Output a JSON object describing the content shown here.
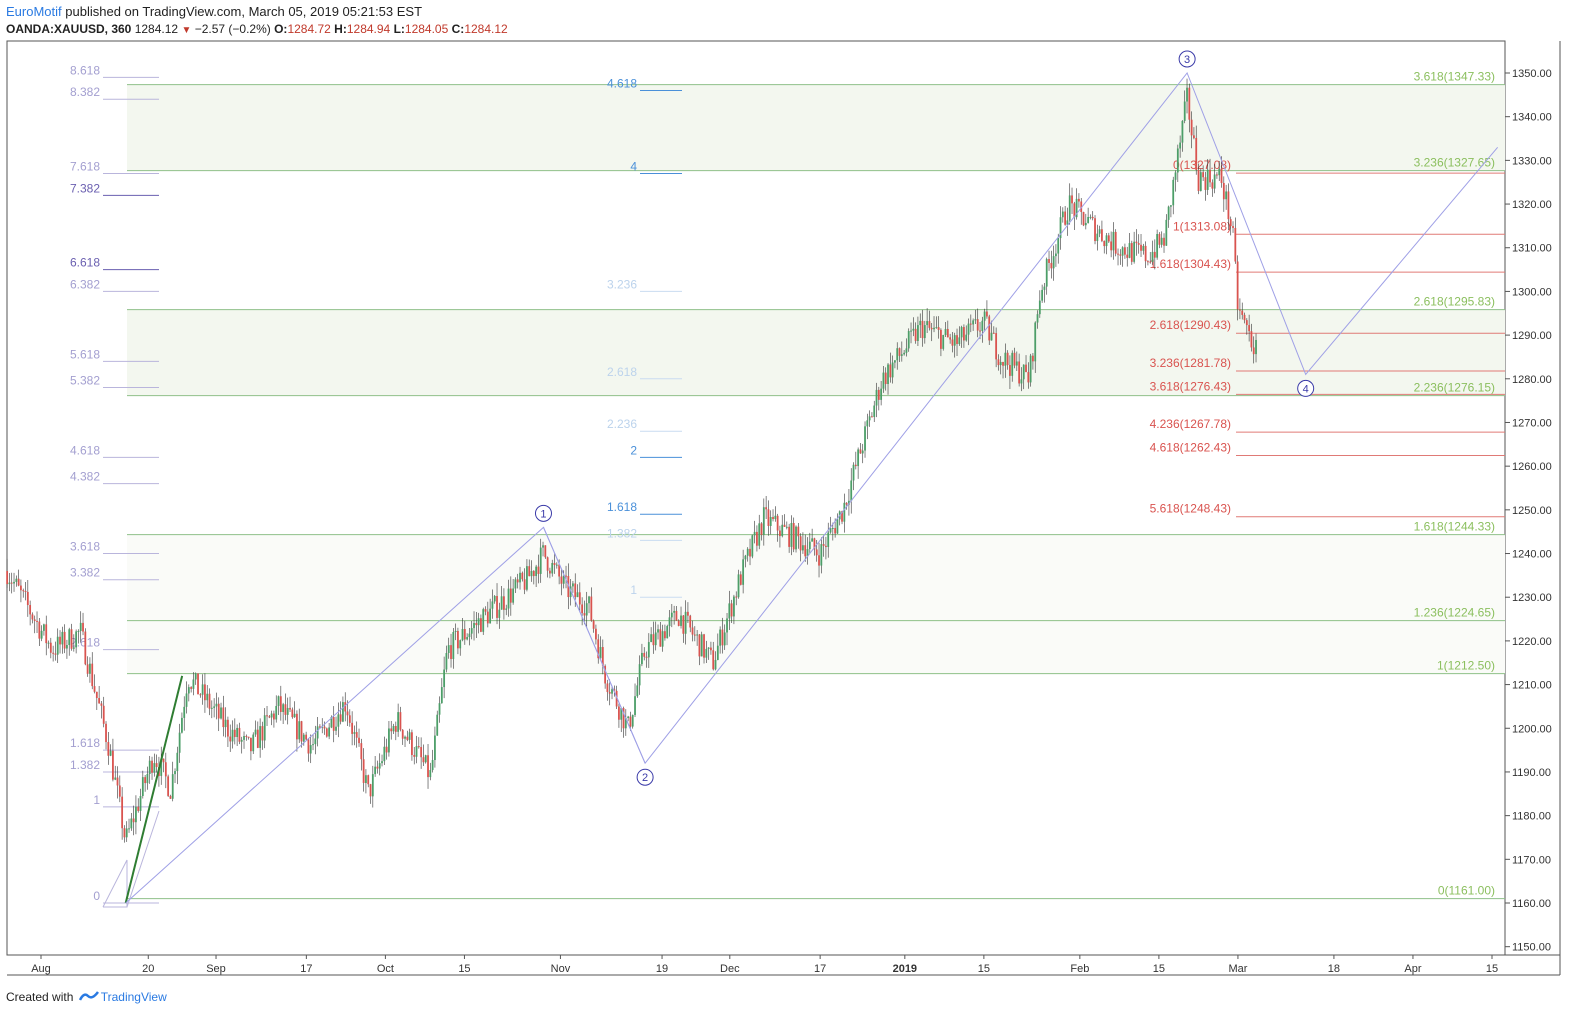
{
  "header": {
    "author": "EuroMotif",
    "published": "published on TradingView.com, March 05, 2019 05:21:53 EST",
    "symbol": "OANDA:XAUUSD, 360",
    "last": "1284.12",
    "change_icon": "down-triangle-icon",
    "change": "−2.57 (−0.2%)",
    "o_label": "O:",
    "o_value": "1284.72",
    "h_label": "H:",
    "h_value": "1284.94",
    "l_label": "L:",
    "l_value": "1284.05",
    "c_label": "C:",
    "c_value": "1284.12"
  },
  "footer": {
    "created_with": "Created with",
    "brand": "TradingView",
    "brand_icon": "tradingview-logo-icon"
  },
  "colors": {
    "up": "#4c9e68",
    "down": "#d9534f",
    "fib_green": "#8bc34a",
    "fib_red": "#d9534f",
    "wave": "#9fa0e6",
    "violet": "#9b97c8",
    "blue": "#4a90d9",
    "zone": "#f3f7ef"
  },
  "chart_data": {
    "type": "candlestick",
    "title": "",
    "xlabel": "",
    "ylabel": "",
    "ylim": [
      1150,
      1355
    ],
    "y_ticks": [
      "1350.00",
      "1340.00",
      "1330.00",
      "1320.00",
      "1310.00",
      "1300.00",
      "1290.00",
      "1280.00",
      "1270.00",
      "1260.00",
      "1250.00",
      "1240.00",
      "1230.00",
      "1220.00",
      "1210.00",
      "1200.00",
      "1190.00",
      "1180.00",
      "1170.00",
      "1160.00",
      "1150.00"
    ],
    "x_ticks": [
      "Aug",
      "20",
      "Sep",
      "17",
      "Oct",
      "15",
      "Nov",
      "19",
      "Dec",
      "17",
      "2019",
      "15",
      "Feb",
      "15",
      "Mar",
      "18",
      "Apr",
      "15"
    ],
    "grid": false,
    "price_path": [
      [
        "2018-07-26",
        1236
      ],
      [
        "2018-08-03",
        1218
      ],
      [
        "2018-08-08",
        1222
      ],
      [
        "2018-08-13",
        1196
      ],
      [
        "2018-08-16",
        1174
      ],
      [
        "2018-08-21",
        1194
      ],
      [
        "2018-08-24",
        1186
      ],
      [
        "2018-08-27",
        1212
      ],
      [
        "2018-09-03",
        1200
      ],
      [
        "2018-09-07",
        1195
      ],
      [
        "2018-09-12",
        1205
      ],
      [
        "2018-09-18",
        1196
      ],
      [
        "2018-09-24",
        1206
      ],
      [
        "2018-09-28",
        1185
      ],
      [
        "2018-10-03",
        1202
      ],
      [
        "2018-10-09",
        1189
      ],
      [
        "2018-10-12",
        1218
      ],
      [
        "2018-10-19",
        1226
      ],
      [
        "2018-10-26",
        1234
      ],
      [
        "2018-10-29",
        1240
      ],
      [
        "2018-11-02",
        1232
      ],
      [
        "2018-11-06",
        1228
      ],
      [
        "2018-11-09",
        1212
      ],
      [
        "2018-11-13",
        1200
      ],
      [
        "2018-11-16",
        1218
      ],
      [
        "2018-11-22",
        1226
      ],
      [
        "2018-11-28",
        1215
      ],
      [
        "2018-12-03",
        1235
      ],
      [
        "2018-12-07",
        1248
      ],
      [
        "2018-12-12",
        1244
      ],
      [
        "2018-12-17",
        1240
      ],
      [
        "2018-12-21",
        1250
      ],
      [
        "2018-12-28",
        1280
      ],
      [
        "2019-01-04",
        1292
      ],
      [
        "2019-01-10",
        1288
      ],
      [
        "2019-01-15",
        1293
      ],
      [
        "2019-01-18",
        1285
      ],
      [
        "2019-01-23",
        1280
      ],
      [
        "2019-01-25",
        1300
      ],
      [
        "2019-01-30",
        1320
      ],
      [
        "2019-02-04",
        1314
      ],
      [
        "2019-02-08",
        1310
      ],
      [
        "2019-02-13",
        1308
      ],
      [
        "2019-02-16",
        1312
      ],
      [
        "2019-02-20",
        1344
      ],
      [
        "2019-02-22",
        1326
      ],
      [
        "2019-02-26",
        1326
      ],
      [
        "2019-02-28",
        1314
      ],
      [
        "2019-03-01",
        1296
      ],
      [
        "2019-03-04",
        1287
      ],
      [
        "2019-03-05",
        1284
      ]
    ],
    "waves": [
      {
        "label": "1",
        "x": "2018-10-29",
        "y": 1246
      },
      {
        "label": "2",
        "x": "2018-11-16",
        "y": 1192
      },
      {
        "label": "3",
        "x": "2019-02-20",
        "y": 1350
      },
      {
        "label": "4",
        "x": "2019-03-13",
        "y": 1281
      }
    ],
    "wave_path": [
      [
        "2018-08-16",
        1160
      ],
      [
        "2018-10-29",
        1246
      ],
      [
        "2018-11-16",
        1192
      ],
      [
        "2019-02-20",
        1350
      ],
      [
        "2019-03-13",
        1281
      ],
      [
        "2019-04-16",
        1333
      ]
    ],
    "green_line": [
      [
        "2018-08-16",
        1160
      ],
      [
        "2018-08-26",
        1212
      ]
    ],
    "fib_extension_green": [
      {
        "label": "0(1161.00)",
        "y": 1161.0
      },
      {
        "label": "1(1212.50)",
        "y": 1212.5
      },
      {
        "label": "1.236(1224.65)",
        "y": 1224.65
      },
      {
        "label": "1.618(1244.33)",
        "y": 1244.33
      },
      {
        "label": "2.236(1276.15)",
        "y": 1276.15
      },
      {
        "label": "2.618(1295.83)",
        "y": 1295.83
      },
      {
        "label": "3.236(1327.65)",
        "y": 1327.65
      },
      {
        "label": "3.618(1347.33)",
        "y": 1347.33
      }
    ],
    "fib_retracement_red": [
      {
        "label": "0(1327.08)",
        "y": 1327.08
      },
      {
        "label": "1(1313.08)",
        "y": 1313.08
      },
      {
        "label": "1.618(1304.43)",
        "y": 1304.43
      },
      {
        "label": "2.618(1290.43)",
        "y": 1290.43
      },
      {
        "label": "3.236(1281.78)",
        "y": 1281.78
      },
      {
        "label": "3.618(1276.43)",
        "y": 1276.43
      },
      {
        "label": "4.236(1267.78)",
        "y": 1267.78
      },
      {
        "label": "4.618(1262.43)",
        "y": 1262.43
      },
      {
        "label": "5.618(1248.43)",
        "y": 1248.43
      }
    ],
    "fib_left_violet": [
      {
        "label": "0",
        "y": 1160
      },
      {
        "label": "1",
        "y": 1182
      },
      {
        "label": "1.382",
        "y": 1190
      },
      {
        "label": "1.618",
        "y": 1195
      },
      {
        "label": "2.618",
        "y": 1218
      },
      {
        "label": "3.382",
        "y": 1234
      },
      {
        "label": "3.618",
        "y": 1240
      },
      {
        "label": "4.382",
        "y": 1256
      },
      {
        "label": "4.618",
        "y": 1262
      },
      {
        "label": "5.382",
        "y": 1278
      },
      {
        "label": "5.618",
        "y": 1284
      },
      {
        "label": "6.382",
        "y": 1300
      },
      {
        "label": "6.618",
        "y": 1305
      },
      {
        "label": "7.382",
        "y": 1322
      },
      {
        "label": "7.618",
        "y": 1327
      },
      {
        "label": "8.382",
        "y": 1344
      },
      {
        "label": "8.618",
        "y": 1349
      }
    ],
    "fib_middle_blue": [
      {
        "label": "1",
        "y": 1230
      },
      {
        "label": "1.382",
        "y": 1243
      },
      {
        "label": "1.618",
        "y": 1249
      },
      {
        "label": "2",
        "y": 1262
      },
      {
        "label": "2.236",
        "y": 1268
      },
      {
        "label": "2.618",
        "y": 1280
      },
      {
        "label": "3.236",
        "y": 1300
      },
      {
        "label": "4",
        "y": 1327
      },
      {
        "label": "4.618",
        "y": 1346
      }
    ]
  }
}
